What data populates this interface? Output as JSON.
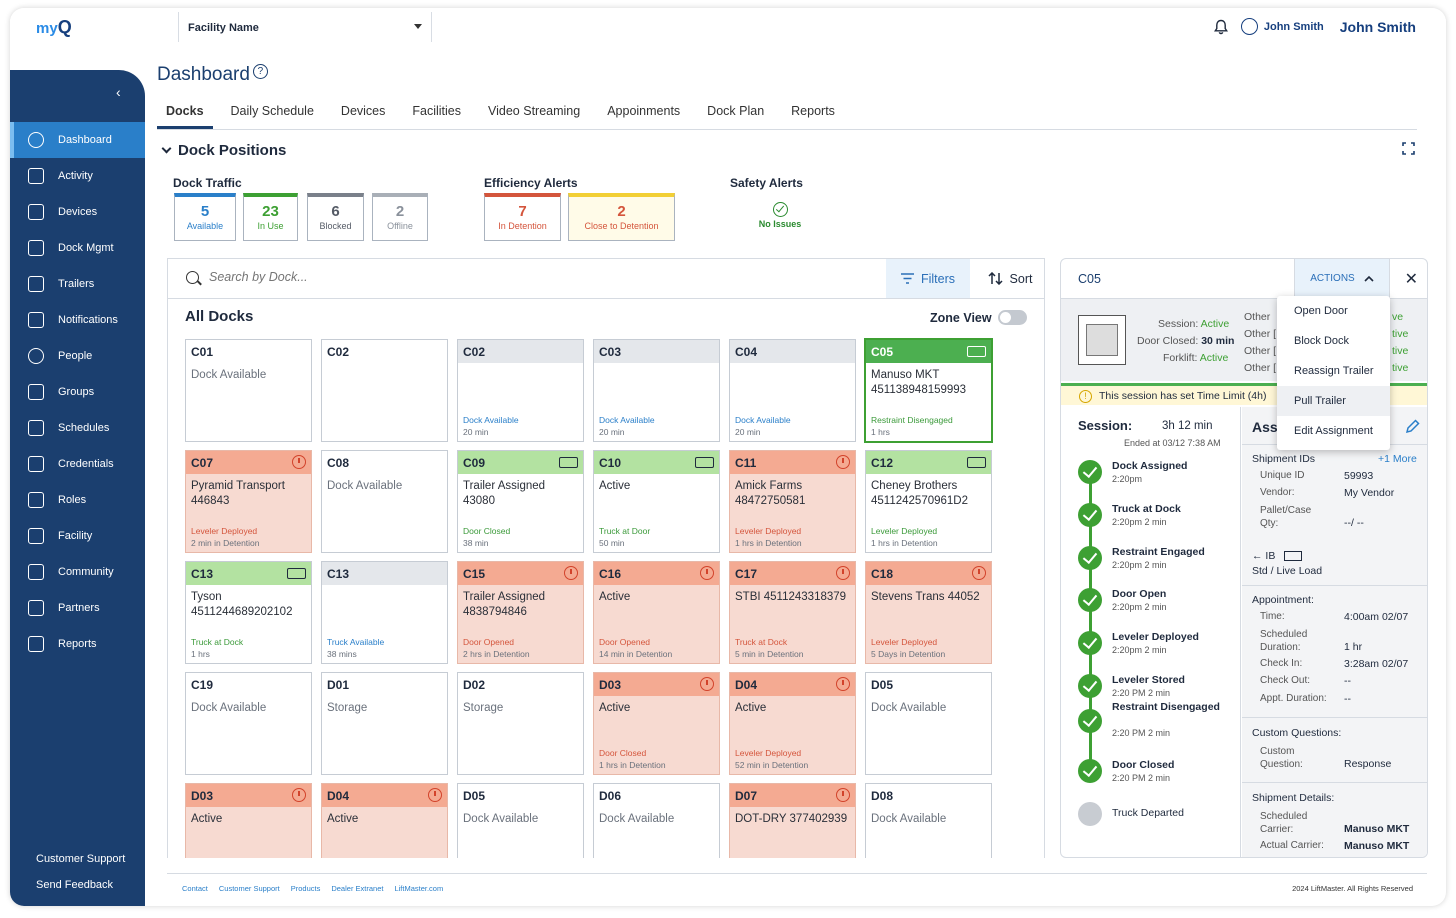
{
  "app": {
    "logo_text": "my",
    "logo_letter": "Q"
  },
  "facility": {
    "label": "Facility Name"
  },
  "user": {
    "short_name": "John Smith",
    "full_name": "John Smith"
  },
  "sidebar": {
    "items": [
      {
        "label": "Dashboard",
        "icon": "gauge-icon",
        "active": true
      },
      {
        "label": "Activity",
        "icon": "activity-icon"
      },
      {
        "label": "Devices",
        "icon": "device-icon"
      },
      {
        "label": "Dock Mgmt",
        "icon": "dock-icon"
      },
      {
        "label": "Trailers",
        "icon": "trailer-icon"
      },
      {
        "label": "Notifications",
        "icon": "mail-icon"
      },
      {
        "label": "People",
        "icon": "person-icon"
      },
      {
        "label": "Groups",
        "icon": "group-icon"
      },
      {
        "label": "Schedules",
        "icon": "calendar-icon"
      },
      {
        "label": "Credentials",
        "icon": "key-icon"
      },
      {
        "label": "Roles",
        "icon": "role-icon"
      },
      {
        "label": "Facility",
        "icon": "facility-icon"
      },
      {
        "label": "Community",
        "icon": "building-icon"
      },
      {
        "label": "Partners",
        "icon": "partners-icon"
      },
      {
        "label": "Reports",
        "icon": "reports-icon"
      }
    ],
    "footer": {
      "support": "Customer Support",
      "feedback": "Send Feedback"
    }
  },
  "page": {
    "title": "Dashboard",
    "section": "Dock Positions"
  },
  "tabs": [
    "Docks",
    "Daily Schedule",
    "Devices",
    "Facilities",
    "Video Streaming",
    "Appoinments",
    "Dock Plan",
    "Reports"
  ],
  "dock_traffic": {
    "label": "Dock Traffic",
    "stats": [
      {
        "n": "5",
        "l": "Available",
        "color": "#2a7fc9"
      },
      {
        "n": "23",
        "l": "In Use",
        "color": "#3da033"
      },
      {
        "n": "6",
        "l": "Blocked",
        "color": "#555b66"
      },
      {
        "n": "2",
        "l": "Offline",
        "color": "#8a919b"
      }
    ]
  },
  "efficiency": {
    "label": "Efficiency Alerts",
    "stats": [
      {
        "n": "7",
        "l": "In Detention",
        "color": "#d4553c"
      },
      {
        "n": "2",
        "l": "Close to Detention",
        "color": "#d4553c"
      }
    ]
  },
  "safety": {
    "label": "Safety Alerts",
    "status": "No Issues"
  },
  "search": {
    "placeholder": "Search by Dock..."
  },
  "toolbar": {
    "filters": "Filters",
    "sort": "Sort"
  },
  "docks": {
    "title": "All Docks",
    "zone_view": "Zone View",
    "cards": [
      {
        "code": "C01",
        "kind": "plain",
        "lines": [
          "Dock Available"
        ],
        "muted": true,
        "status": "",
        "dur": ""
      },
      {
        "code": "C02",
        "kind": "plain",
        "lines": [],
        "status": "",
        "dur": ""
      },
      {
        "code": "C02",
        "kind": "gray",
        "lines": [],
        "status": "Dock Available",
        "dur": "20 min"
      },
      {
        "code": "C03",
        "kind": "gray",
        "lines": [],
        "status": "Dock Available",
        "dur": "20 min"
      },
      {
        "code": "C04",
        "kind": "gray",
        "lines": [],
        "status": "Dock Available",
        "dur": "20 min"
      },
      {
        "code": "C05",
        "kind": "sel",
        "lines": [
          "Manuso MKT",
          "451138948159993"
        ],
        "status": "Restraint Disengaged",
        "dur": "1 hrs",
        "icon": "truck"
      },
      {
        "code": "C07",
        "kind": "red",
        "lines": [
          "Pyramid Transport",
          "446843"
        ],
        "status": "Leveler Deployed",
        "dur": "2 min in Detention",
        "icon": "timer"
      },
      {
        "code": "C08",
        "kind": "plain",
        "lines": [
          "Dock Available"
        ],
        "muted": true,
        "status": "",
        "dur": ""
      },
      {
        "code": "C09",
        "kind": "green",
        "lines": [
          "Trailer Assigned",
          "43080"
        ],
        "status": "Door Closed",
        "dur": "38 min",
        "icon": "truck"
      },
      {
        "code": "C10",
        "kind": "green",
        "lines": [
          "Active"
        ],
        "status": "Truck at Door",
        "dur": "50 min",
        "icon": "truck"
      },
      {
        "code": "C11",
        "kind": "red",
        "lines": [
          "Amick Farms",
          "48472750581"
        ],
        "status": "Leveler Deployed",
        "dur": "1 hrs in Detention",
        "icon": "timer"
      },
      {
        "code": "C12",
        "kind": "green",
        "lines": [
          "Cheney Brothers",
          "4511242570961D2"
        ],
        "status": "Leveler Deployed",
        "dur": "1 hrs in Detention",
        "icon": "truck"
      },
      {
        "code": "C13",
        "kind": "green",
        "lines": [
          "Tyson",
          "4511244689202102"
        ],
        "status": "Truck at Dock",
        "dur": "1 hrs",
        "icon": "truck"
      },
      {
        "code": "C13",
        "kind": "gray",
        "lines": [],
        "status": "Truck Available",
        "dur": "38 mins"
      },
      {
        "code": "C15",
        "kind": "red",
        "lines": [
          "Trailer Assigned",
          "4838794846"
        ],
        "status": "Door Opened",
        "dur": "2 hrs in Detention",
        "icon": "timer"
      },
      {
        "code": "C16",
        "kind": "red",
        "lines": [
          "Active"
        ],
        "status": "Door Opened",
        "dur": "14 min in Detention",
        "icon": "timer"
      },
      {
        "code": "C17",
        "kind": "red",
        "lines": [
          "STBI 4511243318379"
        ],
        "status": "Truck at Dock",
        "dur": "5 min in Detention",
        "icon": "timer"
      },
      {
        "code": "C18",
        "kind": "red",
        "lines": [
          "Stevens Trans 44052"
        ],
        "status": "Leveler Deployed",
        "dur": "5 Days in Detention",
        "icon": "timer"
      },
      {
        "code": "C19",
        "kind": "plain",
        "lines": [
          "Dock Available"
        ],
        "muted": true,
        "status": "",
        "dur": ""
      },
      {
        "code": "D01",
        "kind": "plain",
        "lines": [
          "Storage"
        ],
        "muted": true,
        "status": "",
        "dur": ""
      },
      {
        "code": "D02",
        "kind": "plain",
        "lines": [
          "Storage"
        ],
        "muted": true,
        "status": "",
        "dur": ""
      },
      {
        "code": "D03",
        "kind": "red",
        "lines": [
          "Active"
        ],
        "status": "Door Closed",
        "dur": "1 hrs in Detention",
        "icon": "timer"
      },
      {
        "code": "D04",
        "kind": "red",
        "lines": [
          "Active"
        ],
        "status": "Leveler Deployed",
        "dur": "52 min in Detention",
        "icon": "timer"
      },
      {
        "code": "D05",
        "kind": "plain",
        "lines": [
          "Dock Available"
        ],
        "muted": true,
        "status": "",
        "dur": ""
      },
      {
        "code": "D03",
        "kind": "red",
        "lines": [
          "Active"
        ],
        "status": "",
        "dur": "",
        "icon": "timer"
      },
      {
        "code": "D04",
        "kind": "red",
        "lines": [
          "Active"
        ],
        "status": "",
        "dur": "",
        "icon": "timer"
      },
      {
        "code": "D05",
        "kind": "plain",
        "lines": [
          "Dock Available"
        ],
        "muted": true,
        "status": "",
        "dur": ""
      },
      {
        "code": "D06",
        "kind": "plain",
        "lines": [
          "Dock Available"
        ],
        "muted": true,
        "status": "",
        "dur": ""
      },
      {
        "code": "D07",
        "kind": "red",
        "lines": [
          "DOT-DRY 377402939"
        ],
        "status": "",
        "dur": "",
        "icon": "timer"
      },
      {
        "code": "D08",
        "kind": "plain",
        "lines": [
          "Dock Available"
        ],
        "muted": true,
        "status": "",
        "dur": ""
      }
    ]
  },
  "detail": {
    "code": "C05",
    "actions": "ACTIONS",
    "session_label": "Session:",
    "session_val": "Active",
    "door_label": "Door Closed:",
    "door_val": "30 min",
    "forklift_label": "Forklift:",
    "forklift_val": "Active",
    "other": [
      "Other",
      "Other [",
      "Other [",
      "Other ["
    ],
    "other_suffix": [
      "ve",
      "tive",
      "tive",
      "tive"
    ],
    "limit": "This session has set Time Limit (4h)",
    "tl_title": "Session:",
    "tl_time": "3h 12 min",
    "tl_end": "Ended at 03/12 7:38 AM",
    "events": [
      {
        "name": "Dock Assigned",
        "time": "2:20pm"
      },
      {
        "name": "Truck at Dock",
        "time": "2:20pm  2 min"
      },
      {
        "name": "Restraint Engaged",
        "time": "2:20pm  2 min"
      },
      {
        "name": "Door Open",
        "time": "2:20pm  2 min"
      },
      {
        "name": "Leveler Deployed",
        "time": "2:20pm  2 min"
      },
      {
        "name": "Leveler Stored",
        "time": "2:20 PM  2 min"
      },
      {
        "name": "Restraint Disengaged",
        "time": "2:20 PM  2 min"
      },
      {
        "name": "Door Closed",
        "time": "2:20 PM  2 min"
      },
      {
        "name": "Truck Departed",
        "time": ""
      }
    ],
    "right": {
      "heading": "Ass",
      "shipment_ids": "Shipment IDs",
      "more": "+1 More",
      "unique_label": "Unique ID",
      "unique_val": "59993",
      "vendor_label": "Vendor:",
      "vendor_val": "My Vendor",
      "pallet_label": "Pallet/Case Qty:",
      "pallet_val": "--/ --",
      "ib": "IB",
      "load": "Std / Live Load",
      "appt": "Appointment:",
      "time_label": "Time:",
      "time_val": "4:00am 02/07",
      "sched_label": "Scheduled Duration:",
      "sched_val": "1 hr",
      "checkin_label": "Check In:",
      "checkin_val": "3:28am 02/07",
      "checkout_label": "Check Out:",
      "checkout_val": "--",
      "apptdur_label": "Appt. Duration:",
      "apptdur_val": "--",
      "cq": "Custom Questions:",
      "cq_label": "Custom Question:",
      "cq_val": "Response",
      "sd": "Shipment Details:",
      "sc_label": "Scheduled Carrier:",
      "sc_val": "Manuso MKT",
      "ac_label": "Actual Carrier:",
      "ac_val": "Manuso MKT"
    }
  },
  "menu": [
    "Open Door",
    "Block Dock",
    "Reassign Trailer",
    "Pull Trailer",
    "Edit Assignment"
  ],
  "footer": {
    "links": [
      "Contact",
      "Customer Support",
      "Products",
      "Dealer Extranet",
      "LiftMaster.com"
    ],
    "copy": "2024 LiftMaster. All Rights Reserved"
  }
}
